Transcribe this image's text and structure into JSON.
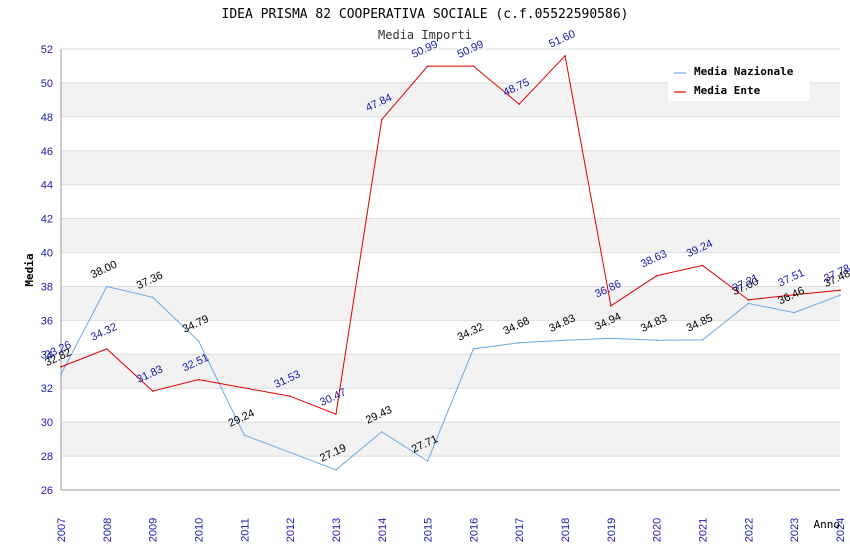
{
  "colors": {
    "naz": "#6fa8e0",
    "ente": "#e00000",
    "band": "#f2f2f2",
    "grid": "#dddddd"
  },
  "chart_data": {
    "type": "line",
    "title": "IDEA PRISMA 82 COOPERATIVA SOCIALE (c.f.05522590586)",
    "subtitle": "Media Importi",
    "xlabel": "Anno",
    "ylabel": "Media",
    "ylim": [
      26,
      52
    ],
    "yticks": [
      26,
      28,
      30,
      32,
      34,
      36,
      38,
      40,
      42,
      44,
      46,
      48,
      50,
      52
    ],
    "categories": [
      "2007",
      "2008",
      "2009",
      "2010",
      "2011",
      "2012",
      "2013",
      "2014",
      "2015",
      "2016",
      "2017",
      "2018",
      "2019",
      "2020",
      "2021",
      "2022",
      "2023",
      "2024"
    ],
    "legend_position": "top-right",
    "series": [
      {
        "name": "Media Nazionale",
        "key": "naz",
        "values": [
          32.82,
          38.0,
          37.36,
          34.79,
          29.24,
          null,
          27.19,
          29.43,
          27.71,
          34.32,
          34.68,
          34.83,
          34.94,
          34.83,
          34.85,
          37.0,
          36.46,
          37.48
        ],
        "labels": [
          "32.82",
          "38.00",
          "37.36",
          "34.79",
          "29.24",
          "",
          "27.19",
          "29.43",
          "27.71",
          "34.32",
          "34.68",
          "34.83",
          "34.94",
          "34.83",
          "34.85",
          "37.00",
          "36.46",
          "37.48"
        ]
      },
      {
        "name": "Media Ente",
        "key": "ente",
        "values": [
          33.26,
          34.32,
          31.83,
          32.51,
          null,
          31.53,
          30.47,
          47.84,
          50.99,
          50.99,
          48.75,
          51.6,
          36.86,
          38.63,
          39.24,
          37.21,
          37.51,
          37.78
        ],
        "labels": [
          "33.26",
          "34.32",
          "31.83",
          "32.51",
          "",
          "31.53",
          "30.47",
          "47.84",
          "50.99",
          "50.99",
          "48.75",
          "51.60",
          "36.86",
          "38.63",
          "39.24",
          "37.21",
          "37.51",
          "37.78"
        ]
      }
    ]
  }
}
